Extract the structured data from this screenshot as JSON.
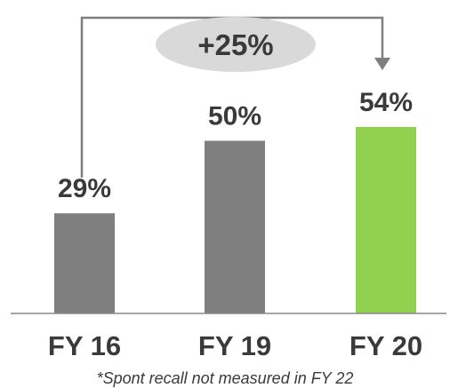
{
  "chart_data": {
    "type": "bar",
    "categories": [
      "FY 16",
      "FY 19",
      "FY 20"
    ],
    "values": [
      29,
      50,
      54
    ],
    "value_labels": [
      "29%",
      "50%",
      "54%"
    ],
    "ylim": [
      0,
      60
    ],
    "grid": false,
    "colors": {
      "default_bar": "#7f7f7f",
      "highlight_bar": "#92d050",
      "highlight_index": 2,
      "axis_line": "#888888",
      "text": "#3a3a3a",
      "annotation_fill": "#d9d9d9",
      "connector": "#7f7f7f"
    },
    "annotation": {
      "label": "+25%",
      "from_category": "FY 16",
      "to_category": "FY 20"
    },
    "footnote": "*Spont recall not measured in FY 22"
  }
}
